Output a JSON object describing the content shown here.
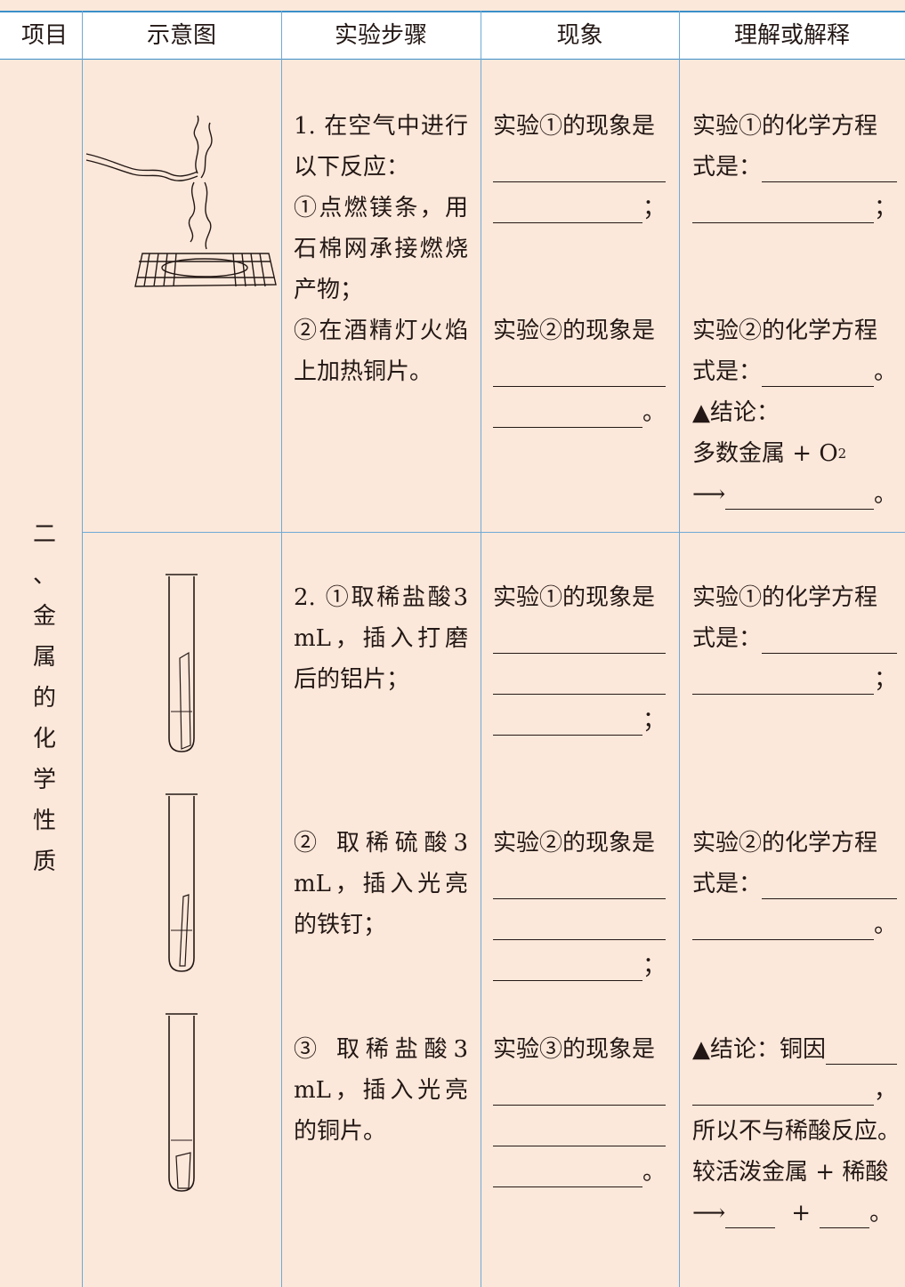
{
  "table": {
    "header": [
      "项目",
      "示意图",
      "实验步骤",
      "现象",
      "理解或解释"
    ],
    "section": "二、金属的化学性质",
    "rows": [
      {
        "steps": [
          "1. 在空气中进行以下反应：",
          "①点燃镁条，用石棉网承接燃烧产物；",
          "②在酒精灯火焰上加热铜片。"
        ],
        "phenomena": [
          "实验①的现象是",
          "；",
          "实验②的现象是",
          "。"
        ],
        "explanation": [
          "实验①的化学方程",
          "式是：",
          "；",
          "实验②的化学方程",
          "式是：",
          "。",
          "▲结论：",
          "多数金属 + O",
          "2",
          "⟶",
          "。"
        ]
      },
      {
        "steps": [
          "2. ①取稀盐酸3 mL，插入打磨后的铝片；",
          "② 取稀硫酸3 mL，插入光亮的铁钉；",
          "③ 取稀盐酸3 mL，插入光亮的铜片。"
        ],
        "phenomena": [
          "实验①的现象是",
          "；",
          "实验②的现象是",
          "；",
          "实验③的现象是",
          "。"
        ],
        "explanation": [
          "实验①的化学方程",
          "式是：",
          "；",
          "实验②的化学方程",
          "式是：",
          "。",
          "▲结论：铜因",
          "，",
          "所以不与稀酸反应。",
          "较活泼金属 + 稀酸",
          "⟶",
          "+",
          "。"
        ]
      }
    ]
  }
}
